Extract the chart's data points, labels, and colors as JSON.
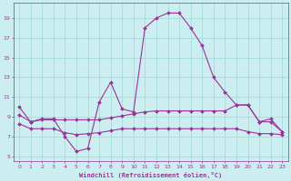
{
  "xlabel": "Windchill (Refroidissement éolien,°C)",
  "bg_color": "#cceef0",
  "grid_color": "#aadddd",
  "line_color": "#993399",
  "xlim": [
    -0.5,
    23.5
  ],
  "ylim": [
    4.5,
    20.5
  ],
  "yticks": [
    5,
    7,
    9,
    11,
    13,
    15,
    17,
    19
  ],
  "xticks": [
    0,
    1,
    2,
    3,
    4,
    5,
    6,
    7,
    8,
    9,
    10,
    11,
    12,
    13,
    14,
    15,
    16,
    17,
    18,
    19,
    20,
    21,
    22,
    23
  ],
  "series1_x": [
    0,
    1,
    2,
    3,
    4,
    5,
    6,
    7,
    8,
    9,
    10,
    11,
    12,
    13,
    14,
    15,
    16,
    17,
    18,
    19,
    20,
    21,
    22,
    23
  ],
  "series1_y": [
    10.0,
    8.5,
    8.8,
    8.8,
    7.0,
    5.5,
    5.8,
    10.5,
    12.5,
    9.8,
    9.5,
    18.0,
    19.0,
    19.5,
    19.5,
    18.0,
    16.2,
    13.0,
    11.5,
    10.2,
    10.2,
    8.5,
    8.8,
    7.5
  ],
  "series2_x": [
    0,
    1,
    2,
    3,
    4,
    5,
    6,
    7,
    8,
    9,
    10,
    11,
    12,
    13,
    14,
    15,
    16,
    17,
    18,
    19,
    20,
    21,
    22,
    23
  ],
  "series2_y": [
    9.2,
    8.5,
    8.7,
    8.7,
    8.7,
    8.7,
    8.7,
    8.7,
    8.9,
    9.1,
    9.3,
    9.5,
    9.6,
    9.6,
    9.6,
    9.6,
    9.6,
    9.6,
    9.6,
    10.2,
    10.2,
    8.5,
    8.5,
    7.5
  ],
  "series3_x": [
    0,
    1,
    2,
    3,
    4,
    5,
    6,
    7,
    8,
    9,
    10,
    11,
    12,
    13,
    14,
    15,
    16,
    17,
    18,
    19,
    20,
    21,
    22,
    23
  ],
  "series3_y": [
    8.3,
    7.8,
    7.8,
    7.8,
    7.4,
    7.2,
    7.3,
    7.4,
    7.6,
    7.8,
    7.8,
    7.8,
    7.8,
    7.8,
    7.8,
    7.8,
    7.8,
    7.8,
    7.8,
    7.8,
    7.5,
    7.3,
    7.3,
    7.2
  ]
}
